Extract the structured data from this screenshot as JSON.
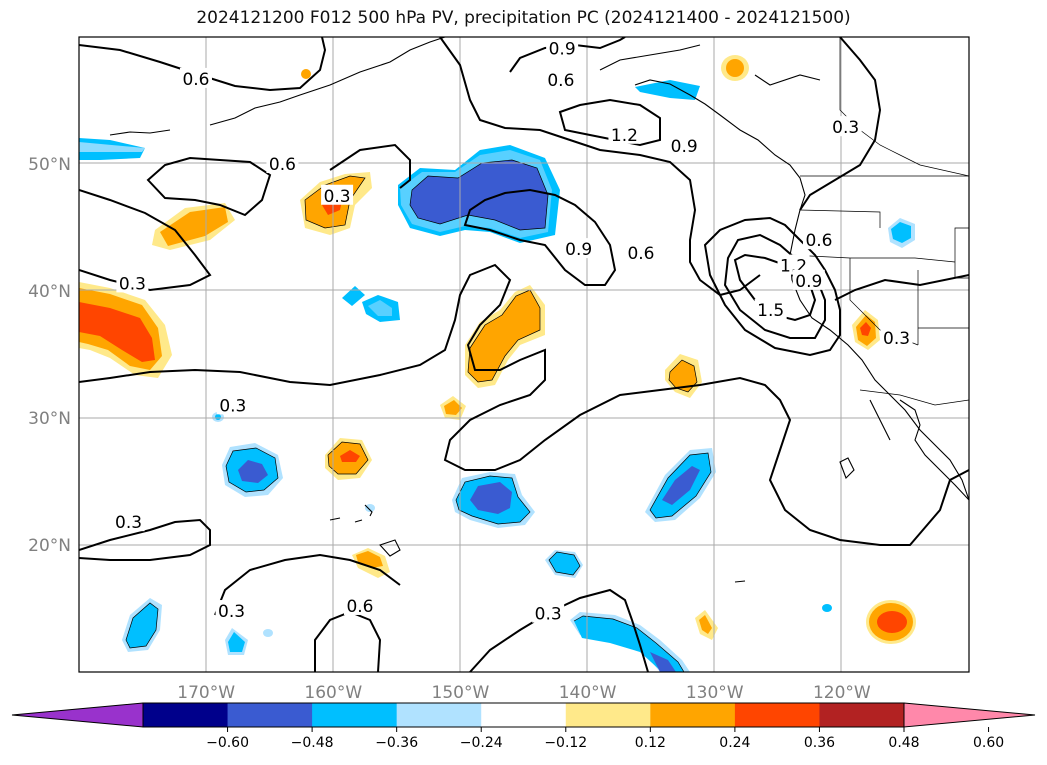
{
  "title": "2024121200 F012 500 hPa PV, precipitation PC (2024121400 - 2024121500)",
  "map": {
    "lon_range": [
      -180,
      -110
    ],
    "lat_range": [
      10,
      60
    ],
    "lat_labels": [
      {
        "lat": 50,
        "text": "50°N"
      },
      {
        "lat": 40,
        "text": "40°N"
      },
      {
        "lat": 30,
        "text": "30°N"
      },
      {
        "lat": 20,
        "text": "20°N"
      }
    ],
    "lon_labels": [
      {
        "lon": -170,
        "text": "170°W"
      },
      {
        "lon": -160,
        "text": "160°W"
      },
      {
        "lon": -150,
        "text": "150°W"
      },
      {
        "lon": -140,
        "text": "140°W"
      },
      {
        "lon": -130,
        "text": "130°W"
      },
      {
        "lon": -120,
        "text": "120°W"
      }
    ],
    "gridlines": true,
    "contour_labels": [
      {
        "text": "0.6",
        "lon": -170.8,
        "lat": 56.7
      },
      {
        "text": "0.6",
        "lon": -164.0,
        "lat": 50.0
      },
      {
        "text": "0.3",
        "lon": -175.8,
        "lat": 40.6
      },
      {
        "text": "0.3",
        "lon": -159.7,
        "lat": 47.5
      },
      {
        "text": "0.3",
        "lon": -167.9,
        "lat": 31.0
      },
      {
        "text": "0.3",
        "lon": -176.1,
        "lat": 21.8
      },
      {
        "text": "0.3",
        "lon": -168.0,
        "lat": 14.8
      },
      {
        "text": "0.6",
        "lon": -157.9,
        "lat": 15.2
      },
      {
        "text": "0.3",
        "lon": -143.1,
        "lat": 14.6
      },
      {
        "text": "0.9",
        "lon": -142.0,
        "lat": 59.1
      },
      {
        "text": "0.6",
        "lon": -142.1,
        "lat": 56.6
      },
      {
        "text": "1.2",
        "lon": -137.1,
        "lat": 52.3
      },
      {
        "text": "0.9",
        "lon": -132.4,
        "lat": 51.4
      },
      {
        "text": "0.9",
        "lon": -140.7,
        "lat": 43.3
      },
      {
        "text": "0.6",
        "lon": -135.8,
        "lat": 43.0
      },
      {
        "text": "1.5",
        "lon": -125.6,
        "lat": 38.5
      },
      {
        "text": "1.2",
        "lon": -123.8,
        "lat": 42.0
      },
      {
        "text": "0.9",
        "lon": -122.6,
        "lat": 40.8
      },
      {
        "text": "0.6",
        "lon": -121.8,
        "lat": 44.0
      },
      {
        "text": "0.3",
        "lon": -119.7,
        "lat": 52.9
      },
      {
        "text": "0.3",
        "lon": -115.7,
        "lat": 36.3
      }
    ],
    "contour_levels": [
      0.3,
      0.6,
      0.9,
      1.2,
      1.5
    ]
  },
  "colorbar": {
    "tick_labels": [
      "−0.60",
      "−0.48",
      "−0.36",
      "−0.24",
      "−0.12",
      "0.12",
      "0.24",
      "0.36",
      "0.48",
      "0.60"
    ],
    "colors": [
      "#9932cc",
      "#00008b",
      "#3a5bd1",
      "#00bfff",
      "#b0e2ff",
      "#ffffff",
      "#ffe98a",
      "#ffa500",
      "#ff4500",
      "#b22222",
      "#ff88aa"
    ],
    "extend": "both"
  }
}
